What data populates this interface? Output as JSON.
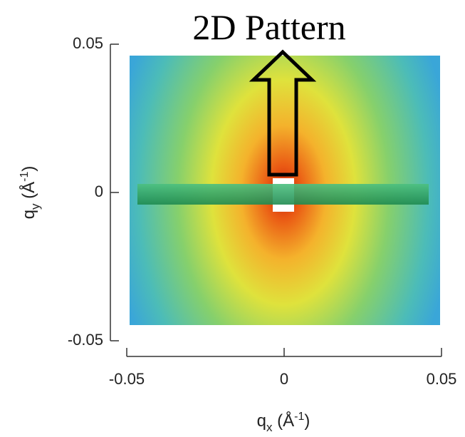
{
  "chart_data": {
    "type": "image",
    "title": "2D Pattern",
    "xlabel": [
      "q",
      "x",
      " (Å",
      "-1",
      ")"
    ],
    "ylabel": [
      "q",
      "y",
      " (Å",
      "-1",
      ")"
    ],
    "xlim": [
      -0.05,
      0.05
    ],
    "ylim": [
      -0.05,
      0.05
    ],
    "xticks": [
      -0.05,
      0,
      0.05
    ],
    "yticks": [
      -0.05,
      0,
      0.05
    ]
  }
}
